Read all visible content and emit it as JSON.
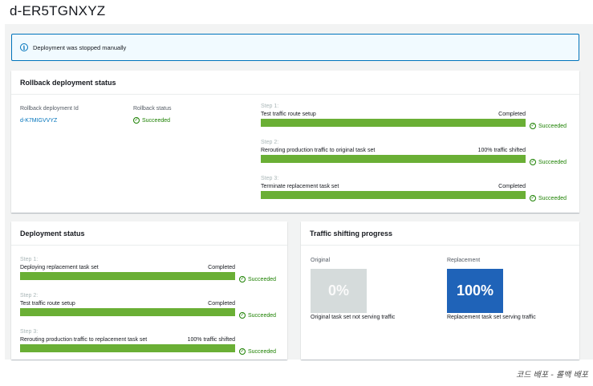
{
  "page": {
    "title": "d-ER5TGNXYZ"
  },
  "alert": {
    "icon": "info-icon",
    "text": "Deployment was stopped manually"
  },
  "rollback": {
    "header": "Rollback deployment status",
    "id_label": "Rollback deployment Id",
    "id_value": "d-K7MIGVVYZ",
    "status_label": "Rollback status",
    "status_value": "Succeeded",
    "steps": [
      {
        "num": "Step 1:",
        "name": "Test traffic route setup",
        "result": "Completed",
        "status": "Succeeded",
        "progress": 1.0
      },
      {
        "num": "Step 2:",
        "name": "Rerouting production traffic to original task set",
        "result": "100% traffic shifted",
        "status": "Succeeded",
        "progress": 1.0
      },
      {
        "num": "Step 3:",
        "name": "Terminate replacement task set",
        "result": "Completed",
        "status": "Succeeded",
        "progress": 1.0
      }
    ]
  },
  "deployment": {
    "header": "Deployment status",
    "steps": [
      {
        "num": "Step 1:",
        "name": "Deploying replacement task set",
        "result": "Completed",
        "status": "Succeeded",
        "progress": 1.0
      },
      {
        "num": "Step 2:",
        "name": "Test traffic route setup",
        "result": "Completed",
        "status": "Succeeded",
        "progress": 1.0
      },
      {
        "num": "Step 3:",
        "name": "Rerouting production traffic to replacement task set",
        "result": "100% traffic shifted",
        "status": "Succeeded",
        "progress": 1.0
      }
    ]
  },
  "traffic": {
    "header": "Traffic shifting progress",
    "original": {
      "label": "Original",
      "percent": "0%",
      "caption": "Original task set not serving traffic"
    },
    "replacement": {
      "label": "Replacement",
      "percent": "100%",
      "caption": "Replacement task set serving traffic"
    }
  },
  "caption": "코드 배포 - 롤백 배포",
  "colors": {
    "success": "#1d8102",
    "bar": "#6aaf35",
    "link": "#0073bb",
    "replacement_tile": "#1f63b8",
    "original_tile": "#d5dbdb"
  }
}
